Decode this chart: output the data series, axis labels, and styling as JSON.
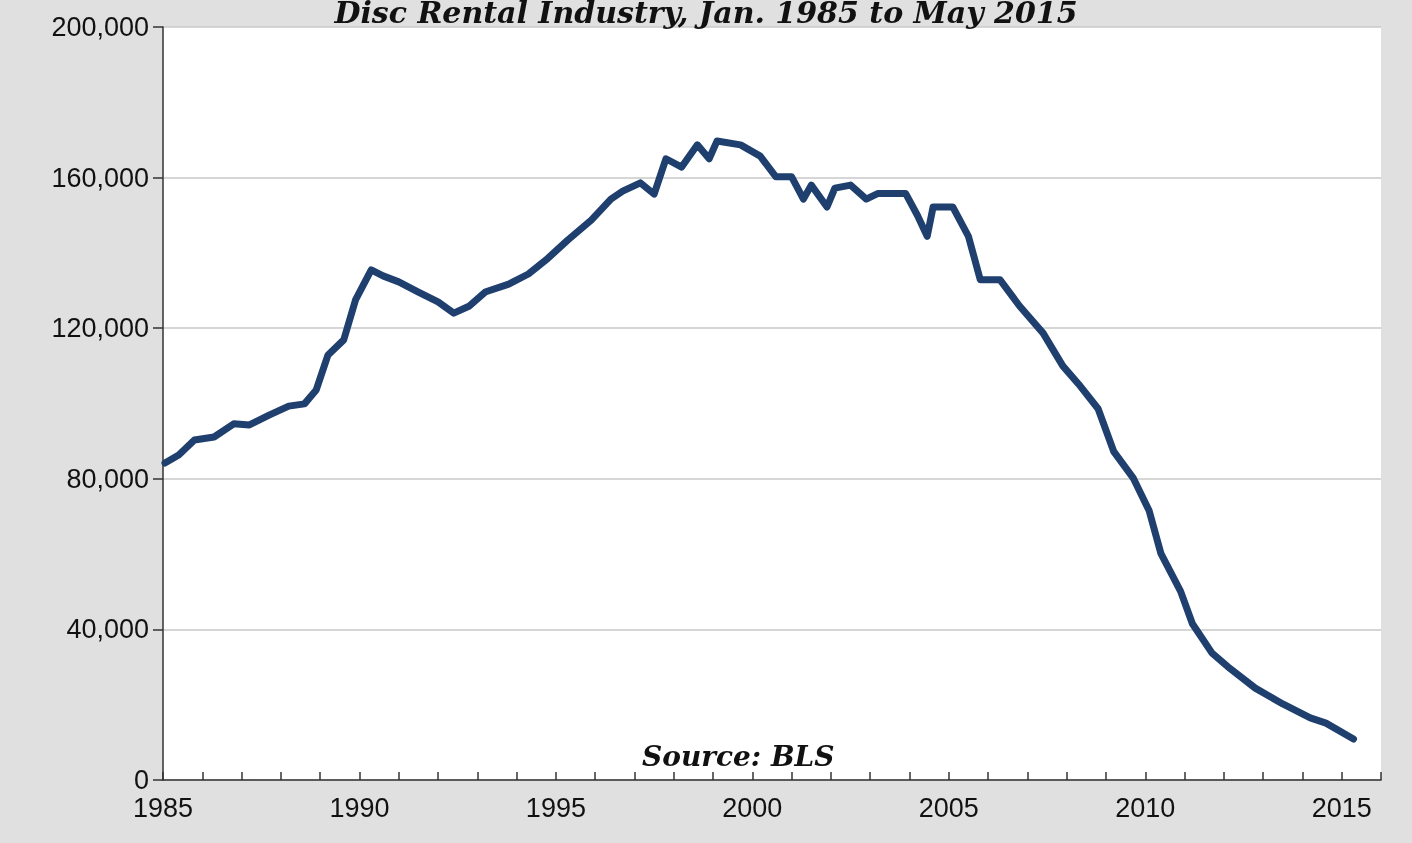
{
  "chart_data": {
    "type": "line",
    "title": "Disc Rental Industry, Jan. 1985 to May 2015",
    "annotations": [
      "Source: BLS"
    ],
    "x": [
      1985.05,
      1985.4,
      1985.8,
      1986.3,
      1986.8,
      1987.2,
      1987.7,
      1988.2,
      1988.6,
      1988.9,
      1989.2,
      1989.6,
      1989.9,
      1990.3,
      1990.6,
      1991.0,
      1991.5,
      1992.0,
      1992.4,
      1992.8,
      1993.2,
      1993.8,
      1994.3,
      1994.8,
      1995.3,
      1995.9,
      1996.4,
      1996.7,
      1997.15,
      1997.5,
      1997.8,
      1998.2,
      1998.6,
      1998.9,
      1999.1,
      1999.7,
      2000.2,
      2000.6,
      2001.0,
      2001.3,
      2001.5,
      2001.9,
      2002.1,
      2002.5,
      2002.9,
      2003.2,
      2003.9,
      2004.2,
      2004.45,
      2004.6,
      2005.1,
      2005.5,
      2005.8,
      2006.3,
      2006.8,
      2007.4,
      2007.9,
      2008.3,
      2008.8,
      2009.2,
      2009.7,
      2010.1,
      2010.4,
      2010.9,
      2011.2,
      2011.7,
      2012.1,
      2012.8,
      2013.5,
      2014.2,
      2014.6,
      2015.3
    ],
    "series": [
      {
        "color": "#1f3f6e",
        "values": [
          84200,
          86300,
          90300,
          91100,
          94600,
          94300,
          96900,
          99300,
          99900,
          103600,
          112900,
          116900,
          127500,
          135500,
          133900,
          132300,
          129600,
          127000,
          124000,
          125900,
          129600,
          131700,
          134400,
          138600,
          143400,
          148700,
          154300,
          156400,
          158600,
          155600,
          165000,
          162800,
          168700,
          165000,
          169700,
          168700,
          165700,
          160200,
          160200,
          154300,
          158000,
          152200,
          157200,
          158000,
          154300,
          155800,
          155800,
          150000,
          144400,
          152200,
          152200,
          144400,
          132900,
          132900,
          125900,
          118700,
          110000,
          105200,
          98600,
          87200,
          80100,
          71500,
          60100,
          50100,
          41500,
          33700,
          30100,
          24400,
          20200,
          16500,
          15100,
          10900
        ]
      }
    ],
    "xlim": [
      1985,
      2016
    ],
    "xticks": [
      1985,
      {
        "value": 1986,
        "label": null
      },
      {
        "value": 1987,
        "label": null
      },
      {
        "value": 1988,
        "label": null
      },
      {
        "value": 1989,
        "label": null
      },
      1990,
      {
        "value": 1991,
        "label": null
      },
      {
        "value": 1992,
        "label": null
      },
      {
        "value": 1993,
        "label": null
      },
      {
        "value": 1994,
        "label": null
      },
      1995,
      {
        "value": 1996,
        "label": null
      },
      {
        "value": 1997,
        "label": null
      },
      {
        "value": 1998,
        "label": null
      },
      {
        "value": 1999,
        "label": null
      },
      2000,
      {
        "value": 2001,
        "label": null
      },
      {
        "value": 2002,
        "label": null
      },
      {
        "value": 2003,
        "label": null
      },
      {
        "value": 2004,
        "label": null
      },
      2005,
      {
        "value": 2006,
        "label": null
      },
      {
        "value": 2007,
        "label": null
      },
      {
        "value": 2008,
        "label": null
      },
      {
        "value": 2009,
        "label": null
      },
      2010,
      {
        "value": 2011,
        "label": null
      },
      {
        "value": 2012,
        "label": null
      },
      {
        "value": 2013,
        "label": null
      },
      {
        "value": 2014,
        "label": null
      },
      2015,
      {
        "value": 2016,
        "label": null
      }
    ],
    "ylim": [
      0,
      200000
    ],
    "yticks": [
      {
        "value": 0,
        "label": "0"
      },
      {
        "value": 40000,
        "label": "40,000"
      },
      {
        "value": 80000,
        "label": "80,000"
      },
      {
        "value": 120000,
        "label": "120,000"
      },
      {
        "value": 160000,
        "label": "160,000"
      },
      {
        "value": 200000,
        "label": "200,000"
      }
    ],
    "grid": "y",
    "marker": "none",
    "line_style": "solid"
  }
}
